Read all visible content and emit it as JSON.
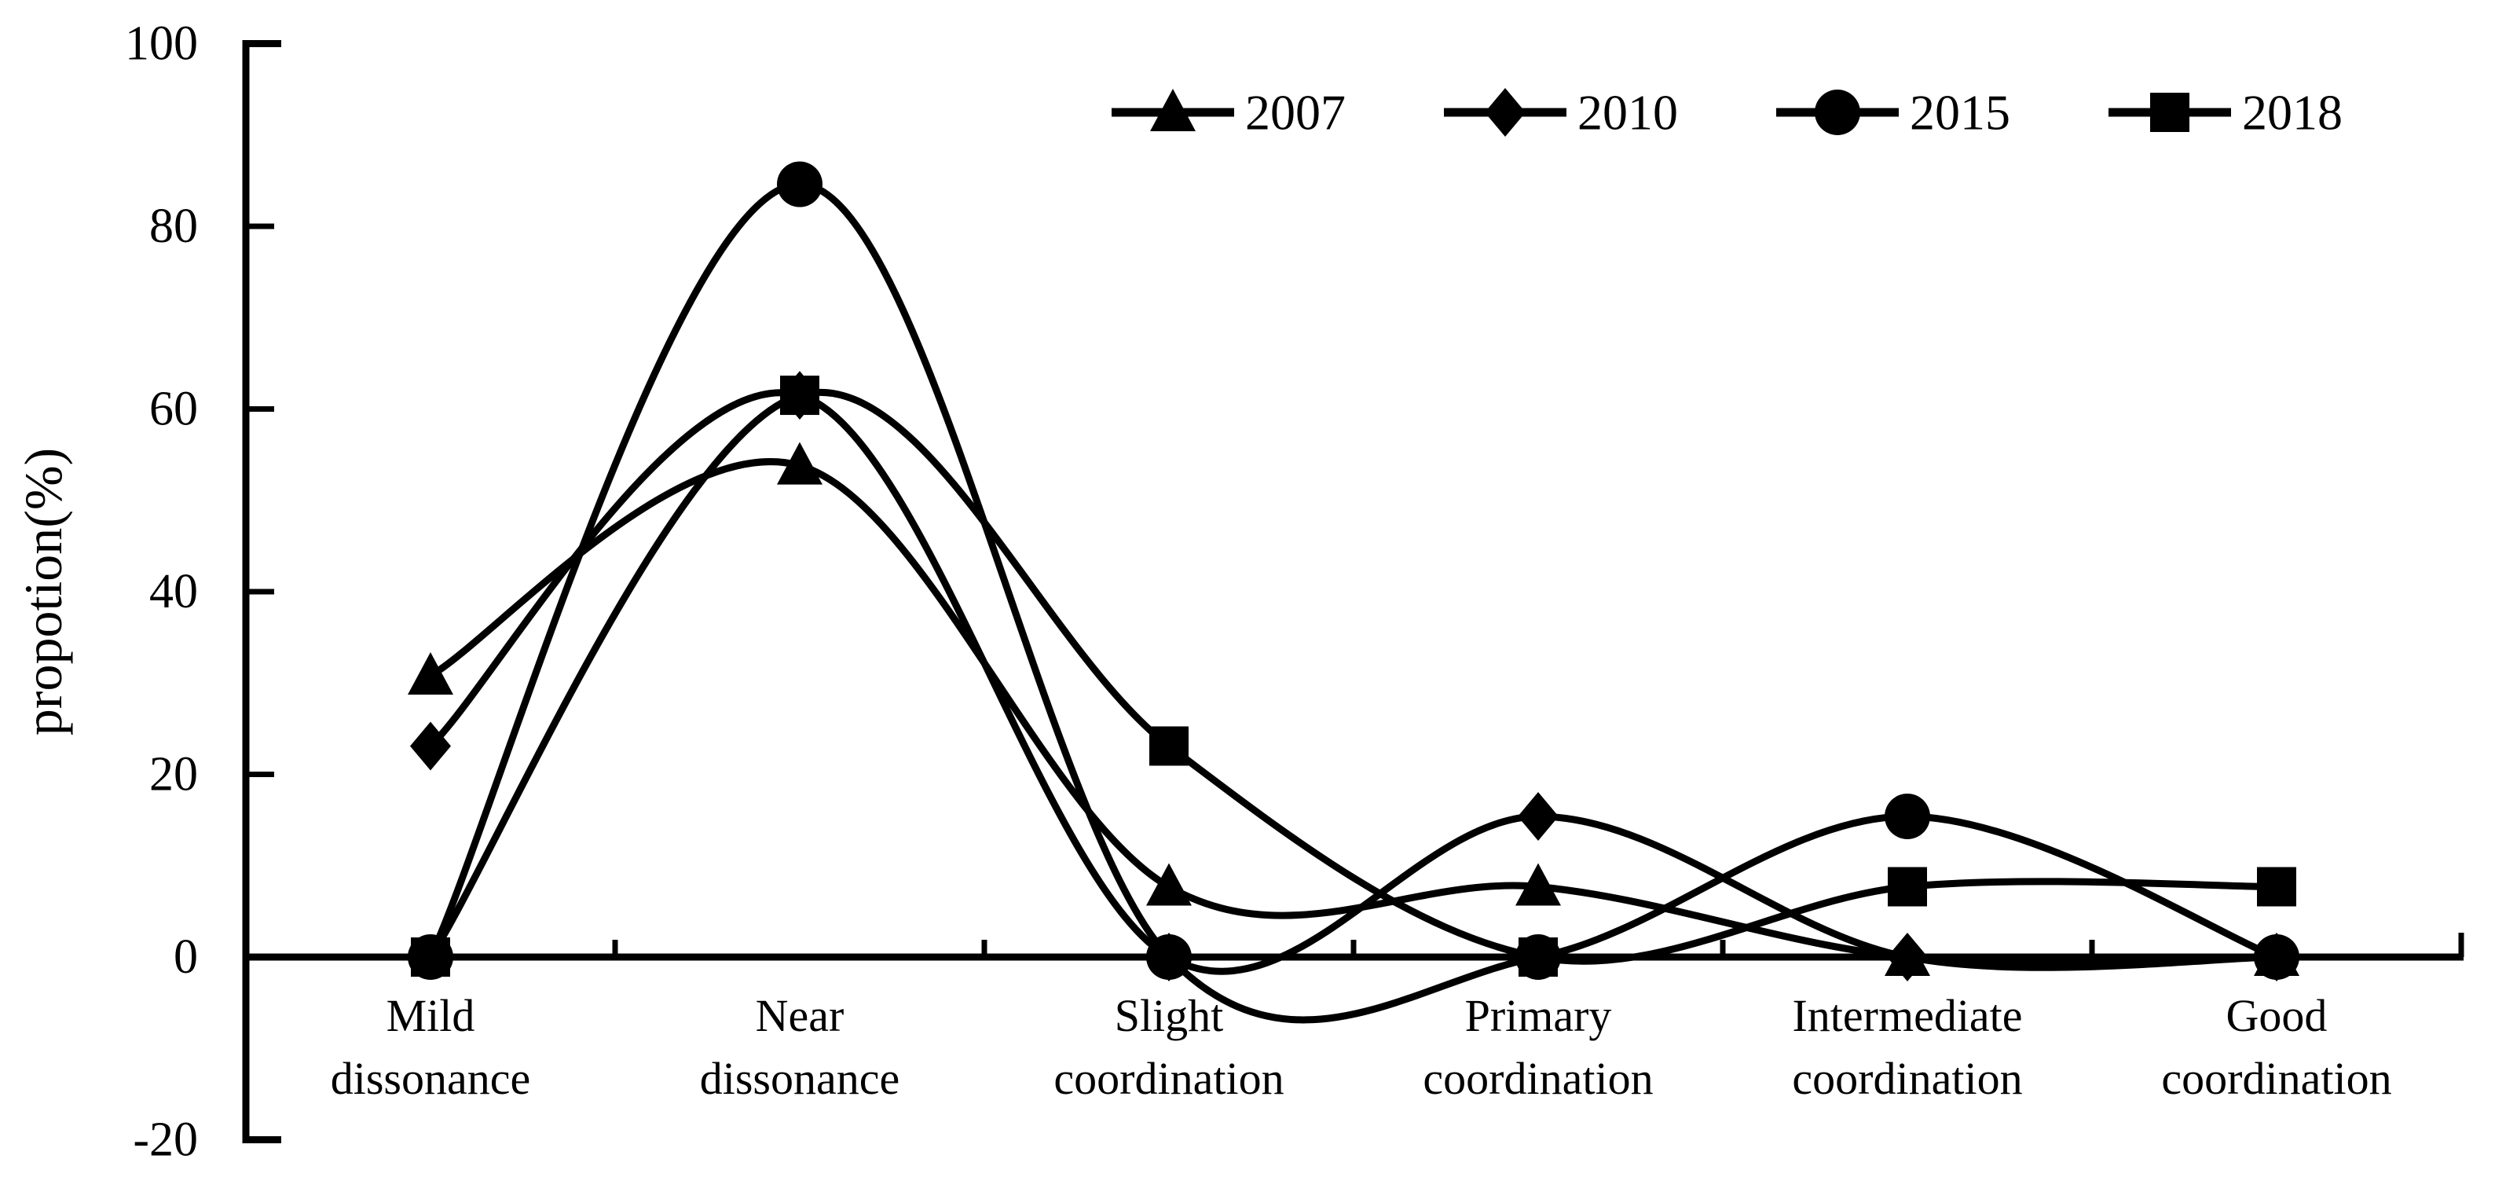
{
  "page": {
    "background": "#ffffff",
    "foreground": "#000000"
  },
  "chart_data": {
    "type": "line",
    "line_style": "smooth-spline",
    "color": "#000000",
    "title": "",
    "xlabel": "",
    "ylabel": "propotion(%)",
    "ylim": [
      -20,
      100
    ],
    "yticks": [
      100,
      80,
      60,
      40,
      20,
      0,
      -20
    ],
    "grid": false,
    "legend_position": "top-center",
    "categories": [
      "Mild dissonance",
      "Near dissonance",
      "Slight coordination",
      "Primary coordination",
      "Intermediate coordination",
      "Good coordination"
    ],
    "category_label_lines": [
      [
        "Mild",
        "dissonance"
      ],
      [
        "Near",
        "dissonance"
      ],
      [
        "Slight",
        "coordination"
      ],
      [
        "Primary",
        "coordination"
      ],
      [
        "Intermediate",
        "coordination"
      ],
      [
        "Good",
        "coordination"
      ]
    ],
    "series": [
      {
        "name": "2007",
        "marker": "triangle",
        "color": "#000000",
        "values": [
          30.8,
          53.8,
          7.7,
          7.7,
          0,
          0
        ]
      },
      {
        "name": "2010",
        "marker": "diamond",
        "color": "#000000",
        "values": [
          23.1,
          61.5,
          0,
          15.4,
          0,
          0
        ]
      },
      {
        "name": "2015",
        "marker": "circle",
        "color": "#000000",
        "values": [
          0,
          84.6,
          0,
          0,
          15.4,
          0
        ]
      },
      {
        "name": "2018",
        "marker": "square",
        "color": "#000000",
        "values": [
          0,
          61.5,
          23.1,
          0,
          7.7,
          7.7
        ]
      }
    ]
  }
}
